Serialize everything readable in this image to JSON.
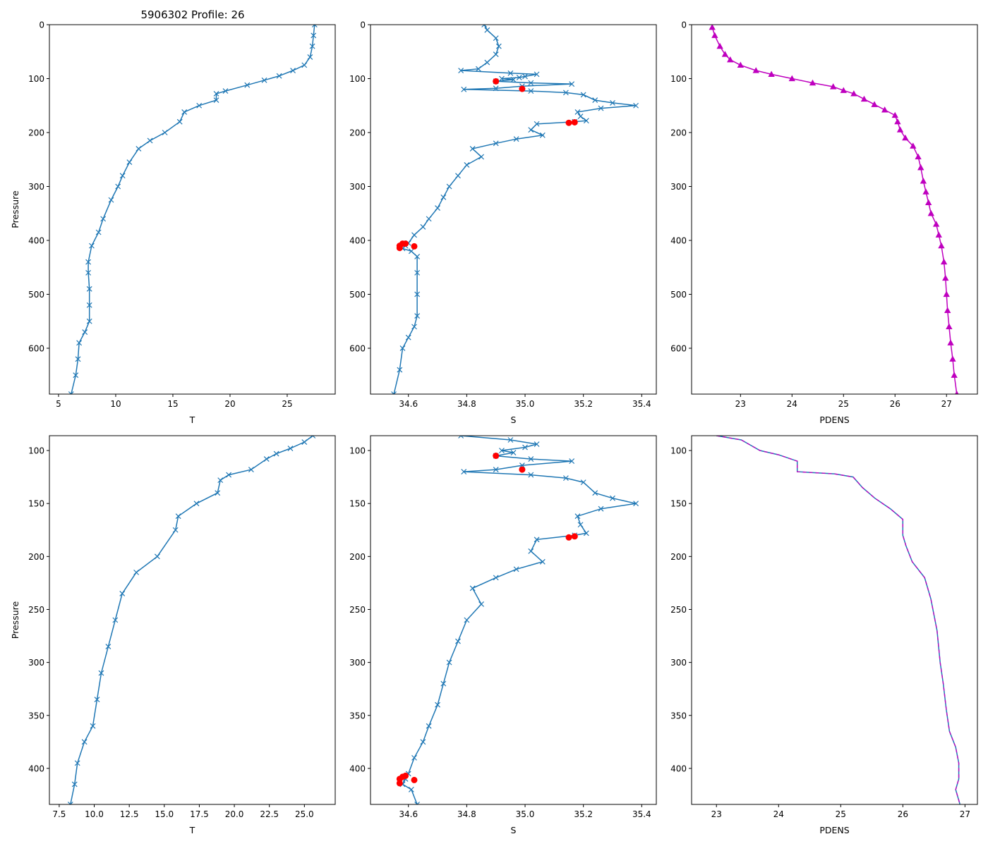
{
  "chart_data": {
    "type": "line",
    "title": "5906302 Profile: 26",
    "colors": {
      "profile": "#1f77b4",
      "flagged": "#ff0000",
      "density": "#bf00bf"
    },
    "panels": [
      {
        "id": "top-temperature",
        "xlabel": "T",
        "ylabel": "Pressure",
        "xlim": [
          4.2,
          29.2
        ],
        "ylim": [
          685,
          0
        ],
        "xticks": [
          5,
          10,
          15,
          20,
          25
        ],
        "xticklabels": [
          "5",
          "10",
          "15",
          "20",
          "25"
        ],
        "yticks": [
          0,
          100,
          200,
          300,
          400,
          500,
          600
        ],
        "yticklabels": [
          "0",
          "100",
          "200",
          "300",
          "400",
          "500",
          "600"
        ],
        "marker": "x",
        "series_color": "profile",
        "profile": [
          [
            27.4,
            0
          ],
          [
            27.3,
            20
          ],
          [
            27.2,
            40
          ],
          [
            27.0,
            60
          ],
          [
            26.5,
            75
          ],
          [
            25.5,
            85
          ],
          [
            24.3,
            95
          ],
          [
            23.0,
            103
          ],
          [
            21.5,
            112
          ],
          [
            19.6,
            123
          ],
          [
            18.8,
            128
          ],
          [
            18.8,
            140
          ],
          [
            17.3,
            150
          ],
          [
            16.0,
            162
          ],
          [
            15.6,
            180
          ],
          [
            14.3,
            200
          ],
          [
            13.0,
            215
          ],
          [
            12.0,
            230
          ],
          [
            11.2,
            255
          ],
          [
            10.6,
            280
          ],
          [
            10.2,
            300
          ],
          [
            9.6,
            325
          ],
          [
            8.9,
            360
          ],
          [
            8.5,
            385
          ],
          [
            7.9,
            410
          ],
          [
            7.6,
            440
          ],
          [
            7.6,
            460
          ],
          [
            7.7,
            490
          ],
          [
            7.7,
            520
          ],
          [
            7.7,
            550
          ],
          [
            7.3,
            570
          ],
          [
            6.8,
            590
          ],
          [
            6.7,
            620
          ],
          [
            6.5,
            650
          ],
          [
            6.1,
            685
          ]
        ],
        "flagged": []
      },
      {
        "id": "top-salinity",
        "xlabel": "S",
        "ylabel": "",
        "xlim": [
          34.47,
          35.45
        ],
        "ylim": [
          685,
          0
        ],
        "xticks": [
          34.6,
          34.8,
          35.0,
          35.2,
          35.4
        ],
        "xticklabels": [
          "34.6",
          "34.8",
          "35.0",
          "35.2",
          "35.4"
        ],
        "yticks": [
          0,
          100,
          200,
          300,
          400,
          500,
          600
        ],
        "yticklabels": [
          "0",
          "100",
          "200",
          "300",
          "400",
          "500",
          "600"
        ],
        "marker": "x",
        "series_color": "profile",
        "profile": [
          [
            34.86,
            0
          ],
          [
            34.87,
            10
          ],
          [
            34.9,
            25
          ],
          [
            34.91,
            40
          ],
          [
            34.9,
            55
          ],
          [
            34.87,
            70
          ],
          [
            34.84,
            82
          ],
          [
            34.78,
            85
          ],
          [
            34.95,
            90
          ],
          [
            35.04,
            92
          ],
          [
            35.0,
            96
          ],
          [
            34.98,
            98
          ],
          [
            34.92,
            100
          ],
          [
            34.96,
            102
          ],
          [
            34.9,
            105
          ],
          [
            35.02,
            108
          ],
          [
            35.16,
            110
          ],
          [
            34.99,
            114
          ],
          [
            34.9,
            118
          ],
          [
            34.79,
            120
          ],
          [
            35.02,
            123
          ],
          [
            35.14,
            126
          ],
          [
            35.2,
            130
          ],
          [
            35.24,
            140
          ],
          [
            35.3,
            145
          ],
          [
            35.38,
            150
          ],
          [
            35.26,
            155
          ],
          [
            35.18,
            162
          ],
          [
            35.19,
            170
          ],
          [
            35.21,
            178
          ],
          [
            35.17,
            180
          ],
          [
            35.04,
            184
          ],
          [
            35.02,
            195
          ],
          [
            35.06,
            205
          ],
          [
            34.97,
            212
          ],
          [
            34.9,
            220
          ],
          [
            34.82,
            230
          ],
          [
            34.85,
            245
          ],
          [
            34.8,
            260
          ],
          [
            34.77,
            280
          ],
          [
            34.74,
            300
          ],
          [
            34.72,
            320
          ],
          [
            34.7,
            340
          ],
          [
            34.67,
            360
          ],
          [
            34.65,
            375
          ],
          [
            34.62,
            390
          ],
          [
            34.6,
            405
          ],
          [
            34.59,
            410
          ],
          [
            34.58,
            415
          ],
          [
            34.61,
            420
          ],
          [
            34.63,
            430
          ],
          [
            34.63,
            460
          ],
          [
            34.63,
            500
          ],
          [
            34.63,
            540
          ],
          [
            34.62,
            560
          ],
          [
            34.6,
            580
          ],
          [
            34.58,
            600
          ],
          [
            34.57,
            640
          ],
          [
            34.55,
            685
          ]
        ],
        "flagged": [
          [
            34.9,
            105
          ],
          [
            34.99,
            119
          ],
          [
            35.15,
            182
          ],
          [
            35.17,
            181
          ],
          [
            34.57,
            410
          ],
          [
            34.57,
            414
          ],
          [
            34.58,
            406
          ],
          [
            34.59,
            406
          ],
          [
            34.62,
            411
          ]
        ]
      },
      {
        "id": "top-density",
        "xlabel": "PDENS",
        "ylabel": "",
        "xlim": [
          22.05,
          27.6
        ],
        "ylim": [
          685,
          0
        ],
        "xticks": [
          23,
          24,
          25,
          26,
          27
        ],
        "xticklabels": [
          "23",
          "24",
          "25",
          "26",
          "27"
        ],
        "yticks": [
          0,
          100,
          200,
          300,
          400,
          500,
          600
        ],
        "yticklabels": [
          "0",
          "100",
          "200",
          "300",
          "400",
          "500",
          "600"
        ],
        "marker": "triangle",
        "series_color": "density",
        "profile": [
          [
            22.45,
            5
          ],
          [
            22.5,
            20
          ],
          [
            22.6,
            40
          ],
          [
            22.7,
            55
          ],
          [
            22.8,
            65
          ],
          [
            23.0,
            75
          ],
          [
            23.3,
            85
          ],
          [
            23.6,
            92
          ],
          [
            24.0,
            100
          ],
          [
            24.4,
            108
          ],
          [
            24.8,
            115
          ],
          [
            25.0,
            122
          ],
          [
            25.2,
            128
          ],
          [
            25.4,
            138
          ],
          [
            25.6,
            148
          ],
          [
            25.8,
            158
          ],
          [
            26.0,
            168
          ],
          [
            26.05,
            180
          ],
          [
            26.1,
            195
          ],
          [
            26.2,
            210
          ],
          [
            26.35,
            225
          ],
          [
            26.45,
            245
          ],
          [
            26.5,
            265
          ],
          [
            26.55,
            290
          ],
          [
            26.6,
            310
          ],
          [
            26.65,
            330
          ],
          [
            26.7,
            350
          ],
          [
            26.8,
            370
          ],
          [
            26.85,
            390
          ],
          [
            26.9,
            410
          ],
          [
            26.95,
            440
          ],
          [
            26.98,
            470
          ],
          [
            27.0,
            500
          ],
          [
            27.02,
            530
          ],
          [
            27.05,
            560
          ],
          [
            27.08,
            590
          ],
          [
            27.12,
            620
          ],
          [
            27.15,
            650
          ],
          [
            27.2,
            685
          ]
        ],
        "flagged": []
      },
      {
        "id": "bottom-temperature",
        "xlabel": "T",
        "ylabel": "Pressure",
        "xlim": [
          6.8,
          27.2
        ],
        "ylim": [
          434,
          86
        ],
        "xticks": [
          7.5,
          10,
          12.5,
          15,
          17.5,
          20,
          22.5,
          25
        ],
        "xticklabels": [
          "7.5",
          "10.0",
          "12.5",
          "15.0",
          "17.5",
          "20.0",
          "22.5",
          "25.0"
        ],
        "yticks": [
          100,
          150,
          200,
          250,
          300,
          350,
          400
        ],
        "yticklabels": [
          "100",
          "150",
          "200",
          "250",
          "300",
          "350",
          "400"
        ],
        "marker": "x",
        "series_color": "profile",
        "profile": [
          [
            25.6,
            86
          ],
          [
            25.0,
            92
          ],
          [
            24.0,
            98
          ],
          [
            23.0,
            103
          ],
          [
            22.3,
            108
          ],
          [
            21.2,
            118
          ],
          [
            19.6,
            123
          ],
          [
            19.0,
            128
          ],
          [
            18.8,
            140
          ],
          [
            17.3,
            150
          ],
          [
            16.0,
            162
          ],
          [
            15.8,
            175
          ],
          [
            14.5,
            200
          ],
          [
            13.0,
            215
          ],
          [
            12.0,
            235
          ],
          [
            11.5,
            260
          ],
          [
            11.0,
            285
          ],
          [
            10.5,
            310
          ],
          [
            10.2,
            335
          ],
          [
            9.9,
            360
          ],
          [
            9.3,
            375
          ],
          [
            8.8,
            395
          ],
          [
            8.6,
            415
          ],
          [
            8.3,
            434
          ]
        ],
        "flagged": []
      },
      {
        "id": "bottom-salinity",
        "xlabel": "S",
        "ylabel": "",
        "xlim": [
          34.47,
          35.45
        ],
        "ylim": [
          434,
          86
        ],
        "xticks": [
          34.6,
          34.8,
          35.0,
          35.2,
          35.4
        ],
        "xticklabels": [
          "34.6",
          "34.8",
          "35.0",
          "35.2",
          "35.4"
        ],
        "yticks": [
          100,
          150,
          200,
          250,
          300,
          350,
          400
        ],
        "yticklabels": [
          "100",
          "150",
          "200",
          "250",
          "300",
          "350",
          "400"
        ],
        "marker": "x",
        "series_color": "profile",
        "profile": [
          [
            34.78,
            86
          ],
          [
            34.95,
            90
          ],
          [
            35.04,
            94
          ],
          [
            35.0,
            97
          ],
          [
            34.92,
            100
          ],
          [
            34.96,
            102
          ],
          [
            34.9,
            105
          ],
          [
            35.02,
            108
          ],
          [
            35.16,
            110
          ],
          [
            34.99,
            114
          ],
          [
            34.9,
            118
          ],
          [
            34.79,
            120
          ],
          [
            35.02,
            123
          ],
          [
            35.14,
            126
          ],
          [
            35.2,
            130
          ],
          [
            35.24,
            140
          ],
          [
            35.3,
            145
          ],
          [
            35.38,
            150
          ],
          [
            35.26,
            155
          ],
          [
            35.18,
            162
          ],
          [
            35.19,
            170
          ],
          [
            35.21,
            178
          ],
          [
            35.17,
            180
          ],
          [
            35.04,
            184
          ],
          [
            35.02,
            195
          ],
          [
            35.06,
            205
          ],
          [
            34.97,
            212
          ],
          [
            34.9,
            220
          ],
          [
            34.82,
            230
          ],
          [
            34.85,
            245
          ],
          [
            34.8,
            260
          ],
          [
            34.77,
            280
          ],
          [
            34.74,
            300
          ],
          [
            34.72,
            320
          ],
          [
            34.7,
            340
          ],
          [
            34.67,
            360
          ],
          [
            34.65,
            375
          ],
          [
            34.62,
            390
          ],
          [
            34.6,
            405
          ],
          [
            34.59,
            410
          ],
          [
            34.58,
            415
          ],
          [
            34.61,
            420
          ],
          [
            34.63,
            434
          ]
        ],
        "flagged": [
          [
            34.9,
            105
          ],
          [
            34.99,
            118
          ],
          [
            35.15,
            182
          ],
          [
            35.17,
            181
          ],
          [
            34.57,
            410
          ],
          [
            34.57,
            414
          ],
          [
            34.58,
            408
          ],
          [
            34.59,
            407
          ],
          [
            34.62,
            411
          ]
        ]
      },
      {
        "id": "bottom-density",
        "xlabel": "PDENS",
        "ylabel": "",
        "xlim": [
          22.6,
          27.2
        ],
        "ylim": [
          434,
          86
        ],
        "xticks": [
          23,
          24,
          25,
          26,
          27
        ],
        "xticklabels": [
          "23",
          "24",
          "25",
          "26",
          "27"
        ],
        "yticks": [
          100,
          150,
          200,
          250,
          300,
          350,
          400
        ],
        "yticklabels": [
          "100",
          "150",
          "200",
          "250",
          "300",
          "350",
          "400"
        ],
        "marker": "none",
        "series_color": "profile",
        "profile": [
          [
            23.0,
            86
          ],
          [
            23.4,
            90
          ],
          [
            23.55,
            95
          ],
          [
            23.7,
            100
          ],
          [
            24.0,
            104
          ],
          [
            24.3,
            110
          ],
          [
            24.3,
            120
          ],
          [
            24.9,
            122
          ],
          [
            25.2,
            125
          ],
          [
            25.35,
            135
          ],
          [
            25.55,
            145
          ],
          [
            25.8,
            155
          ],
          [
            26.0,
            165
          ],
          [
            26.0,
            180
          ],
          [
            26.05,
            190
          ],
          [
            26.15,
            205
          ],
          [
            26.35,
            220
          ],
          [
            26.45,
            240
          ],
          [
            26.55,
            270
          ],
          [
            26.6,
            300
          ],
          [
            26.65,
            320
          ],
          [
            26.7,
            345
          ],
          [
            26.75,
            365
          ],
          [
            26.85,
            380
          ],
          [
            26.9,
            395
          ],
          [
            26.9,
            410
          ],
          [
            26.85,
            420
          ],
          [
            26.92,
            434
          ]
        ],
        "flagged": []
      }
    ]
  }
}
